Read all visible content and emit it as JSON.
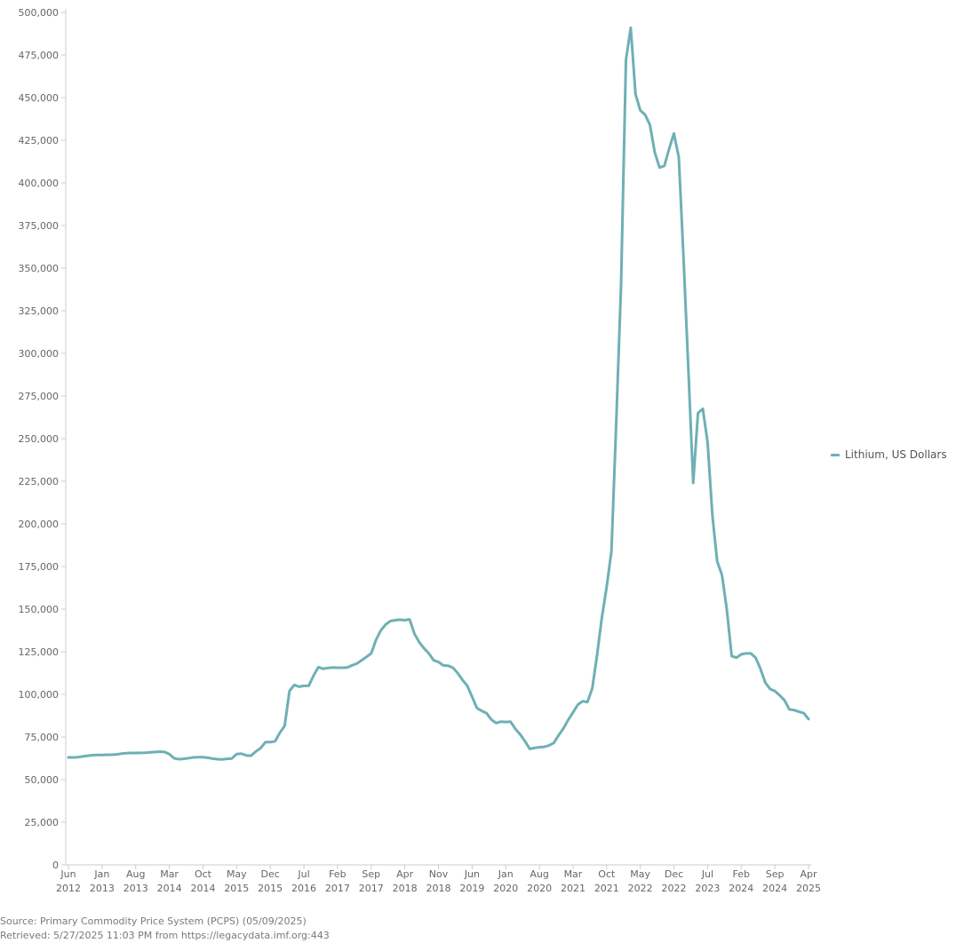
{
  "chart_data": {
    "type": "line",
    "title": "",
    "xlabel": "",
    "ylabel": "",
    "ylim": [
      0,
      500000
    ],
    "y_ticks": [
      0,
      25000,
      50000,
      75000,
      100000,
      125000,
      150000,
      175000,
      200000,
      225000,
      250000,
      275000,
      300000,
      325000,
      350000,
      375000,
      400000,
      425000,
      450000,
      475000,
      500000
    ],
    "y_tick_labels": [
      "0",
      "25,000",
      "50,000",
      "75,000",
      "100,000",
      "125,000",
      "150,000",
      "175,000",
      "200,000",
      "225,000",
      "250,000",
      "275,000",
      "300,000",
      "325,000",
      "350,000",
      "375,000",
      "400,000",
      "425,000",
      "450,000",
      "475,000",
      "500,000"
    ],
    "xlim": [
      "2012-06",
      "2025-04"
    ],
    "x_ticks": [
      {
        "date": "2012-06",
        "month": "Jun",
        "year": "2012"
      },
      {
        "date": "2013-01",
        "month": "Jan",
        "year": "2013"
      },
      {
        "date": "2013-08",
        "month": "Aug",
        "year": "2013"
      },
      {
        "date": "2014-03",
        "month": "Mar",
        "year": "2014"
      },
      {
        "date": "2014-10",
        "month": "Oct",
        "year": "2014"
      },
      {
        "date": "2015-05",
        "month": "May",
        "year": "2015"
      },
      {
        "date": "2015-12",
        "month": "Dec",
        "year": "2015"
      },
      {
        "date": "2016-07",
        "month": "Jul",
        "year": "2016"
      },
      {
        "date": "2017-02",
        "month": "Feb",
        "year": "2017"
      },
      {
        "date": "2017-09",
        "month": "Sep",
        "year": "2017"
      },
      {
        "date": "2018-04",
        "month": "Apr",
        "year": "2018"
      },
      {
        "date": "2018-11",
        "month": "Nov",
        "year": "2018"
      },
      {
        "date": "2019-06",
        "month": "Jun",
        "year": "2019"
      },
      {
        "date": "2020-01",
        "month": "Jan",
        "year": "2020"
      },
      {
        "date": "2020-08",
        "month": "Aug",
        "year": "2020"
      },
      {
        "date": "2021-03",
        "month": "Mar",
        "year": "2021"
      },
      {
        "date": "2021-10",
        "month": "Oct",
        "year": "2021"
      },
      {
        "date": "2022-05",
        "month": "May",
        "year": "2022"
      },
      {
        "date": "2022-12",
        "month": "Dec",
        "year": "2022"
      },
      {
        "date": "2023-07",
        "month": "Jul",
        "year": "2023"
      },
      {
        "date": "2024-02",
        "month": "Feb",
        "year": "2024"
      },
      {
        "date": "2024-09",
        "month": "Sep",
        "year": "2024"
      },
      {
        "date": "2025-04",
        "month": "Apr",
        "year": "2025"
      }
    ],
    "grid": false,
    "legend_position": "right",
    "series": [
      {
        "name": "Lithium, US Dollars",
        "color": "#6eb0b5",
        "points": [
          [
            "2012-06",
            63000
          ],
          [
            "2012-07",
            63000
          ],
          [
            "2012-08",
            63200
          ],
          [
            "2012-09",
            63600
          ],
          [
            "2012-10",
            64000
          ],
          [
            "2012-11",
            64300
          ],
          [
            "2012-12",
            64500
          ],
          [
            "2013-01",
            64500
          ],
          [
            "2013-02",
            64600
          ],
          [
            "2013-03",
            64600
          ],
          [
            "2013-04",
            64800
          ],
          [
            "2013-05",
            65200
          ],
          [
            "2013-06",
            65500
          ],
          [
            "2013-07",
            65600
          ],
          [
            "2013-08",
            65600
          ],
          [
            "2013-09",
            65700
          ],
          [
            "2013-10",
            65800
          ],
          [
            "2013-11",
            66000
          ],
          [
            "2013-12",
            66200
          ],
          [
            "2014-01",
            66400
          ],
          [
            "2014-02",
            66200
          ],
          [
            "2014-03",
            65000
          ],
          [
            "2014-04",
            62500
          ],
          [
            "2014-05",
            62000
          ],
          [
            "2014-06",
            62200
          ],
          [
            "2014-07",
            62600
          ],
          [
            "2014-08",
            63000
          ],
          [
            "2014-09",
            63100
          ],
          [
            "2014-10",
            63200
          ],
          [
            "2014-11",
            62800
          ],
          [
            "2014-12",
            62300
          ],
          [
            "2015-01",
            62000
          ],
          [
            "2015-02",
            61900
          ],
          [
            "2015-03",
            62200
          ],
          [
            "2015-04",
            62400
          ],
          [
            "2015-05",
            65000
          ],
          [
            "2015-06",
            65200
          ],
          [
            "2015-07",
            64200
          ],
          [
            "2015-08",
            64000
          ],
          [
            "2015-09",
            66500
          ],
          [
            "2015-10",
            68500
          ],
          [
            "2015-11",
            72000
          ],
          [
            "2015-12",
            72000
          ],
          [
            "2016-01",
            72500
          ],
          [
            "2016-02",
            77500
          ],
          [
            "2016-03",
            81500
          ],
          [
            "2016-04",
            102000
          ],
          [
            "2016-05",
            105500
          ],
          [
            "2016-06",
            104500
          ],
          [
            "2016-07",
            105000
          ],
          [
            "2016-08",
            105000
          ],
          [
            "2016-09",
            111000
          ],
          [
            "2016-10",
            116000
          ],
          [
            "2016-11",
            115000
          ],
          [
            "2016-12",
            115500
          ],
          [
            "2017-01",
            115800
          ],
          [
            "2017-02",
            115600
          ],
          [
            "2017-03",
            115600
          ],
          [
            "2017-04",
            115800
          ],
          [
            "2017-05",
            117000
          ],
          [
            "2017-06",
            118000
          ],
          [
            "2017-07",
            120000
          ],
          [
            "2017-08",
            122000
          ],
          [
            "2017-09",
            124000
          ],
          [
            "2017-10",
            132000
          ],
          [
            "2017-11",
            137500
          ],
          [
            "2017-12",
            141000
          ],
          [
            "2018-01",
            143000
          ],
          [
            "2018-02",
            143500
          ],
          [
            "2018-03",
            143800
          ],
          [
            "2018-04",
            143500
          ],
          [
            "2018-05",
            144000
          ],
          [
            "2018-06",
            135500
          ],
          [
            "2018-07",
            130500
          ],
          [
            "2018-08",
            127000
          ],
          [
            "2018-09",
            124000
          ],
          [
            "2018-10",
            120000
          ],
          [
            "2018-11",
            119000
          ],
          [
            "2018-12",
            117000
          ],
          [
            "2019-01",
            116800
          ],
          [
            "2019-02",
            115700
          ],
          [
            "2019-03",
            112500
          ],
          [
            "2019-04",
            108500
          ],
          [
            "2019-05",
            105000
          ],
          [
            "2019-06",
            98500
          ],
          [
            "2019-07",
            92000
          ],
          [
            "2019-08",
            90300
          ],
          [
            "2019-09",
            89000
          ],
          [
            "2019-10",
            85200
          ],
          [
            "2019-11",
            83200
          ],
          [
            "2019-12",
            84000
          ],
          [
            "2020-01",
            83800
          ],
          [
            "2020-02",
            84000
          ],
          [
            "2020-03",
            79800
          ],
          [
            "2020-04",
            76500
          ],
          [
            "2020-05",
            72500
          ],
          [
            "2020-06",
            68000
          ],
          [
            "2020-07",
            68600
          ],
          [
            "2020-08",
            69000
          ],
          [
            "2020-09",
            69200
          ],
          [
            "2020-10",
            70000
          ],
          [
            "2020-11",
            71500
          ],
          [
            "2020-12",
            76000
          ],
          [
            "2021-01",
            80000
          ],
          [
            "2021-02",
            85000
          ],
          [
            "2021-03",
            89500
          ],
          [
            "2021-04",
            94000
          ],
          [
            "2021-05",
            96000
          ],
          [
            "2021-06",
            95500
          ],
          [
            "2021-07",
            103500
          ],
          [
            "2021-08",
            123000
          ],
          [
            "2021-09",
            145000
          ],
          [
            "2021-10",
            163000
          ],
          [
            "2021-11",
            184000
          ],
          [
            "2021-12",
            260000
          ],
          [
            "2022-01",
            340000
          ],
          [
            "2022-02",
            472000
          ],
          [
            "2022-03",
            491000
          ],
          [
            "2022-04",
            452000
          ],
          [
            "2022-05",
            442500
          ],
          [
            "2022-06",
            440000
          ],
          [
            "2022-07",
            434000
          ],
          [
            "2022-08",
            418000
          ],
          [
            "2022-09",
            409000
          ],
          [
            "2022-10",
            410000
          ],
          [
            "2022-11",
            420000
          ],
          [
            "2022-12",
            429000
          ],
          [
            "2023-01",
            415000
          ],
          [
            "2023-02",
            355000
          ],
          [
            "2023-03",
            290000
          ],
          [
            "2023-04",
            224000
          ],
          [
            "2023-05",
            265000
          ],
          [
            "2023-06",
            267500
          ],
          [
            "2023-07",
            248000
          ],
          [
            "2023-08",
            205000
          ],
          [
            "2023-09",
            178000
          ],
          [
            "2023-10",
            170000
          ],
          [
            "2023-11",
            150000
          ],
          [
            "2023-12",
            122500
          ],
          [
            "2024-01",
            121500
          ],
          [
            "2024-02",
            123500
          ],
          [
            "2024-03",
            124000
          ],
          [
            "2024-04",
            124000
          ],
          [
            "2024-05",
            121500
          ],
          [
            "2024-06",
            115000
          ],
          [
            "2024-07",
            107000
          ],
          [
            "2024-08",
            103200
          ],
          [
            "2024-09",
            102000
          ],
          [
            "2024-10",
            99500
          ],
          [
            "2024-11",
            96500
          ],
          [
            "2024-12",
            91200
          ],
          [
            "2025-01",
            90800
          ],
          [
            "2025-02",
            89800
          ],
          [
            "2025-03",
            89000
          ],
          [
            "2025-04",
            85500
          ]
        ]
      }
    ]
  },
  "legend": {
    "label": "Lithium, US Dollars",
    "color": "#6eb0b5"
  },
  "footer": {
    "source": "Source: Primary Commodity Price System (PCPS) (05/09/2025)",
    "retrieved": "Retrieved: 5/27/2025 11:03 PM from https://legacydata.imf.org:443"
  }
}
